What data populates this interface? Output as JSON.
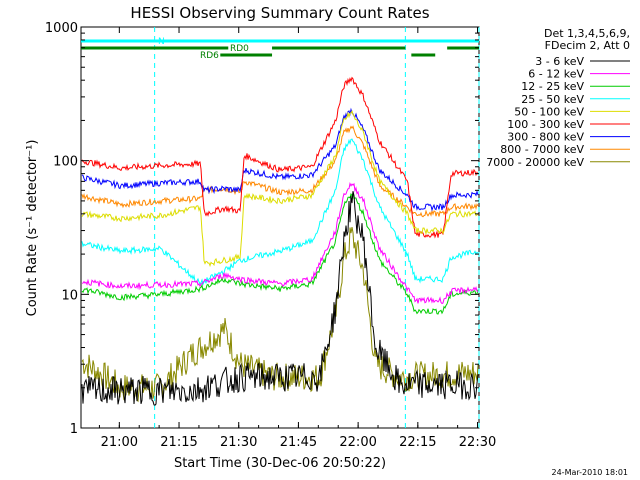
{
  "chart_data": {
    "type": "line",
    "title": "HESSI Observing Summary Count Rates",
    "xlabel": "Start Time (30-Dec-06 20:50:22)",
    "ylabel": "Count Rate (s⁻¹ detector⁻¹)",
    "x_unit": "minutes since 20:50:22 UT",
    "xlim": [
      0,
      100
    ],
    "ylim": [
      1,
      1000
    ],
    "y_scale": "log",
    "x_ticks": [
      {
        "label": "21:00",
        "value": 9.63
      },
      {
        "label": "21:15",
        "value": 24.63
      },
      {
        "label": "21:30",
        "value": 39.63
      },
      {
        "label": "21:45",
        "value": 54.63
      },
      {
        "label": "22:00",
        "value": 69.63
      },
      {
        "label": "22:15",
        "value": 84.63
      },
      {
        "label": "22:30",
        "value": 99.63
      }
    ],
    "y_ticks": [
      {
        "label": "1",
        "value": 1
      },
      {
        "label": "10",
        "value": 10
      },
      {
        "label": "100",
        "value": 100
      },
      {
        "label": "1000",
        "value": 1000
      }
    ],
    "legend": {
      "position": "right",
      "header": [
        "Det 1,3,4,5,6,9,",
        "FDecim 2, Att 0"
      ]
    },
    "series": [
      {
        "name": "3 - 6 keV",
        "color": "#000000",
        "x": [
          0,
          28,
          40,
          60,
          64,
          66,
          68,
          71,
          74,
          80,
          100
        ],
        "y": [
          1.9,
          1.9,
          2.4,
          2.4,
          8,
          25,
          50,
          25,
          4,
          2.1,
          2.1
        ]
      },
      {
        "name": "6 - 12 keV",
        "color": "#ff00ff",
        "x": [
          0,
          10,
          20,
          30,
          36,
          40,
          50,
          58,
          64,
          66,
          68,
          71,
          75,
          82,
          84,
          91,
          93,
          100
        ],
        "y": [
          12.5,
          11.5,
          11.8,
          12,
          14,
          13,
          12,
          13,
          30,
          55,
          68,
          50,
          22,
          11,
          9,
          9,
          10.5,
          11
        ]
      },
      {
        "name": "12 - 25 keV",
        "color": "#00cc00",
        "x": [
          0,
          10,
          20,
          30,
          36,
          40,
          50,
          58,
          64,
          66,
          68,
          71,
          75,
          82,
          84,
          91,
          93,
          100
        ],
        "y": [
          11,
          9.5,
          10,
          11,
          13,
          12,
          11,
          12,
          25,
          45,
          58,
          40,
          18,
          10,
          7.5,
          7.5,
          10,
          10.5
        ]
      },
      {
        "name": "25 - 50 keV",
        "color": "#00ffff",
        "x": [
          0,
          10,
          20,
          30,
          36,
          40,
          50,
          58,
          64,
          66,
          68,
          71,
          75,
          82,
          84,
          91,
          93,
          100
        ],
        "y": [
          24,
          21,
          22,
          12,
          15,
          18,
          21,
          25,
          60,
          120,
          145,
          100,
          45,
          20,
          13,
          13,
          19,
          21
        ]
      },
      {
        "name": "50 - 100 keV",
        "color": "#dddd00",
        "x": [
          0,
          10,
          20,
          30,
          31,
          36,
          40,
          41,
          50,
          58,
          64,
          66,
          68,
          71,
          75,
          82,
          84,
          91,
          93,
          100
        ],
        "y": [
          40,
          37,
          39,
          45,
          17,
          18,
          19,
          55,
          50,
          55,
          110,
          200,
          230,
          160,
          70,
          40,
          30,
          30,
          40,
          40
        ]
      },
      {
        "name": "100 - 300 keV",
        "color": "#ff0000",
        "x": [
          0,
          10,
          20,
          30,
          31,
          36,
          40,
          41,
          50,
          58,
          64,
          66,
          68,
          71,
          75,
          82,
          84,
          91,
          93,
          100
        ],
        "y": [
          100,
          88,
          92,
          95,
          40,
          44,
          42,
          110,
          85,
          90,
          200,
          360,
          420,
          300,
          140,
          70,
          28,
          28,
          80,
          82
        ]
      },
      {
        "name": "300 - 800 keV",
        "color": "#0000ff",
        "x": [
          0,
          10,
          20,
          30,
          31,
          36,
          40,
          41,
          50,
          58,
          64,
          66,
          68,
          71,
          75,
          82,
          84,
          91,
          93,
          100
        ],
        "y": [
          75,
          65,
          68,
          70,
          60,
          62,
          60,
          85,
          75,
          78,
          130,
          210,
          240,
          170,
          85,
          55,
          45,
          45,
          55,
          56
        ]
      },
      {
        "name": "800 - 7000 keV",
        "color": "#ff8800",
        "x": [
          0,
          10,
          20,
          30,
          31,
          36,
          40,
          41,
          50,
          58,
          64,
          66,
          68,
          71,
          75,
          82,
          84,
          91,
          93,
          100
        ],
        "y": [
          55,
          47,
          50,
          52,
          60,
          62,
          58,
          70,
          58,
          60,
          100,
          160,
          180,
          130,
          65,
          45,
          40,
          40,
          45,
          46
        ]
      },
      {
        "name": "7000 - 20000 keV",
        "color": "#888800",
        "x": [
          0,
          10,
          20,
          28,
          36,
          40,
          48,
          60,
          64,
          66,
          68,
          71,
          74,
          80,
          100
        ],
        "y": [
          3.2,
          2.0,
          2.0,
          3.6,
          5.5,
          3.0,
          2.4,
          2.4,
          7,
          18,
          28,
          15,
          3,
          2.4,
          2.6
        ]
      }
    ],
    "annotations": {
      "vlines": [
        18.5,
        81.5,
        100
      ],
      "bars": [
        {
          "label": "N",
          "color": "#00ffff",
          "row": 0,
          "segments": [
            [
              0,
              100
            ]
          ]
        },
        {
          "label": "RD0",
          "color": "#008000",
          "row": 1,
          "segments": [
            [
              0,
              37
            ],
            [
              48,
              81.5
            ],
            [
              92,
              100
            ]
          ]
        },
        {
          "label": "RD6",
          "color": "#008000",
          "row": 2,
          "segments": [
            [
              35,
              48
            ],
            [
              83,
              89
            ]
          ]
        }
      ]
    }
  },
  "footer": {
    "date": "24-Mar-2010 18:01"
  }
}
